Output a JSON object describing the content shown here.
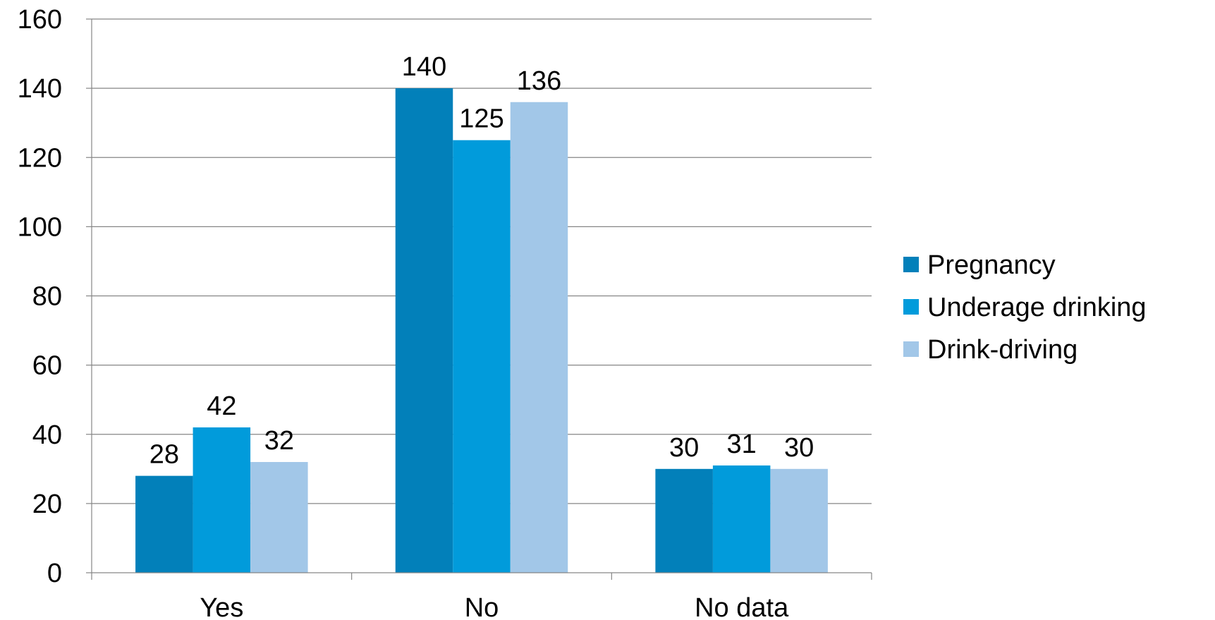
{
  "chart_data": {
    "type": "bar",
    "title": "",
    "xlabel": "",
    "ylabel": "",
    "categories": [
      "Yes",
      "No",
      "No data"
    ],
    "series": [
      {
        "name": "Pregnancy",
        "values": [
          28,
          140,
          30
        ],
        "color": "#0280BA"
      },
      {
        "name": "Underage drinking",
        "values": [
          42,
          125,
          31
        ],
        "color": "#019BDB"
      },
      {
        "name": "Drink-driving",
        "values": [
          32,
          136,
          30
        ],
        "color": "#A2C7E8"
      }
    ],
    "ylim": [
      0,
      160
    ],
    "yticks": [
      0,
      20,
      40,
      60,
      80,
      100,
      120,
      140,
      160
    ],
    "grid": true,
    "legend_position": "right",
    "data_labels": true
  }
}
